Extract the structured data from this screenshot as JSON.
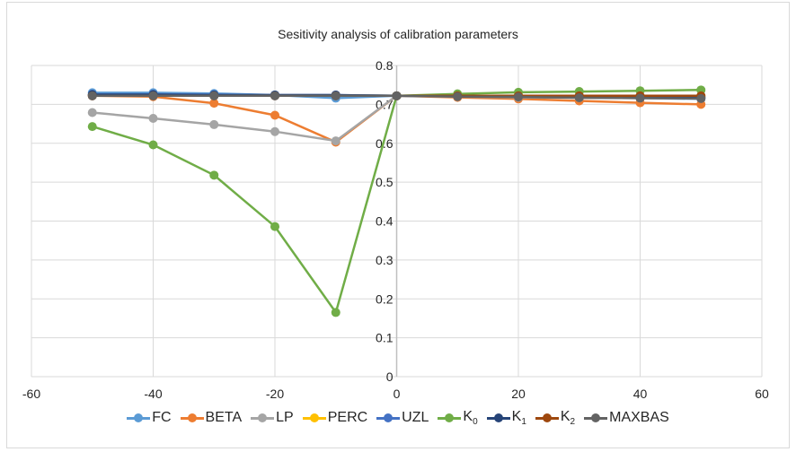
{
  "chart_data": {
    "type": "line",
    "title": "Sesitivity analysis of calibration parameters",
    "xlabel": "",
    "ylabel": "",
    "xlim": [
      -60,
      60
    ],
    "ylim": [
      0,
      0.8
    ],
    "x_ticks": [
      "-60",
      "-40",
      "-20",
      "0",
      "20",
      "40",
      "60"
    ],
    "y_ticks": [
      "0",
      "0.1",
      "0.2",
      "0.3",
      "0.4",
      "0.5",
      "0.6",
      "0.7",
      "0.8"
    ],
    "grid": true,
    "legend_position": "bottom",
    "x": [
      -50,
      -40,
      -30,
      -20,
      -10,
      0,
      10,
      20,
      30,
      40,
      50
    ],
    "series": [
      {
        "name": "FC",
        "label_main": "FC",
        "label_sub": "",
        "color": "#5b9bd5",
        "values": [
          0.73,
          0.73,
          0.728,
          0.724,
          0.716,
          0.722,
          0.72,
          0.72,
          0.718,
          0.716,
          0.714
        ]
      },
      {
        "name": "BETA",
        "label_main": "BETA",
        "label_sub": "",
        "color": "#ed7d31",
        "values": [
          0.722,
          0.72,
          0.703,
          0.672,
          0.603,
          0.722,
          0.718,
          0.714,
          0.709,
          0.704,
          0.7
        ]
      },
      {
        "name": "LP",
        "label_main": "LP",
        "label_sub": "",
        "color": "#a5a5a5",
        "values": [
          0.679,
          0.664,
          0.648,
          0.63,
          0.606,
          0.722,
          0.72,
          0.718,
          0.717,
          0.716,
          0.715
        ]
      },
      {
        "name": "PERC",
        "label_main": "PERC",
        "label_sub": "",
        "color": "#ffc000",
        "values": [
          0.724,
          0.724,
          0.723,
          0.723,
          0.723,
          0.722,
          0.722,
          0.722,
          0.721,
          0.721,
          0.721
        ]
      },
      {
        "name": "UZL",
        "label_main": "UZL",
        "label_sub": "",
        "color": "#4472c4",
        "values": [
          0.726,
          0.726,
          0.725,
          0.724,
          0.724,
          0.722,
          0.721,
          0.72,
          0.719,
          0.718,
          0.717
        ]
      },
      {
        "name": "K0",
        "label_main": "K",
        "label_sub": "0",
        "color": "#70ad47",
        "values": [
          0.643,
          0.596,
          0.518,
          0.386,
          0.165,
          0.722,
          0.727,
          0.731,
          0.733,
          0.735,
          0.737
        ]
      },
      {
        "name": "K1",
        "label_main": "K",
        "label_sub": "1",
        "color": "#264478",
        "values": [
          0.725,
          0.725,
          0.724,
          0.724,
          0.724,
          0.722,
          0.721,
          0.72,
          0.72,
          0.719,
          0.719
        ]
      },
      {
        "name": "K2",
        "label_main": "K",
        "label_sub": "2",
        "color": "#9e480e",
        "values": [
          0.722,
          0.722,
          0.722,
          0.722,
          0.722,
          0.722,
          0.722,
          0.722,
          0.722,
          0.722,
          0.722
        ]
      },
      {
        "name": "MAXBAS",
        "label_main": "MAXBAS",
        "label_sub": "",
        "color": "#636363",
        "values": [
          0.722,
          0.722,
          0.722,
          0.722,
          0.722,
          0.722,
          0.72,
          0.719,
          0.717,
          0.716,
          0.715
        ]
      }
    ]
  }
}
